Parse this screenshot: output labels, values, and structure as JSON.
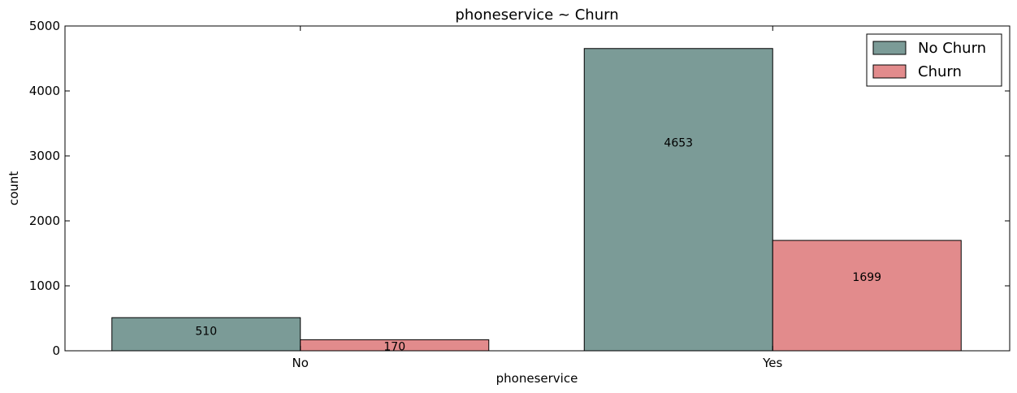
{
  "chart_data": {
    "type": "bar",
    "title": "phoneservice ~ Churn",
    "xlabel": "phoneservice",
    "ylabel": "count",
    "categories": [
      "No",
      "Yes"
    ],
    "ylim": [
      0,
      5000
    ],
    "yticks": [
      0,
      1000,
      2000,
      3000,
      4000,
      5000
    ],
    "series": [
      {
        "name": "No Churn",
        "values": [
          510,
          4653
        ],
        "color": "#7b9b97"
      },
      {
        "name": "Churn",
        "values": [
          170,
          1699
        ],
        "color": "#e28b8c"
      }
    ],
    "grid": false,
    "legend_position": "top-right"
  }
}
